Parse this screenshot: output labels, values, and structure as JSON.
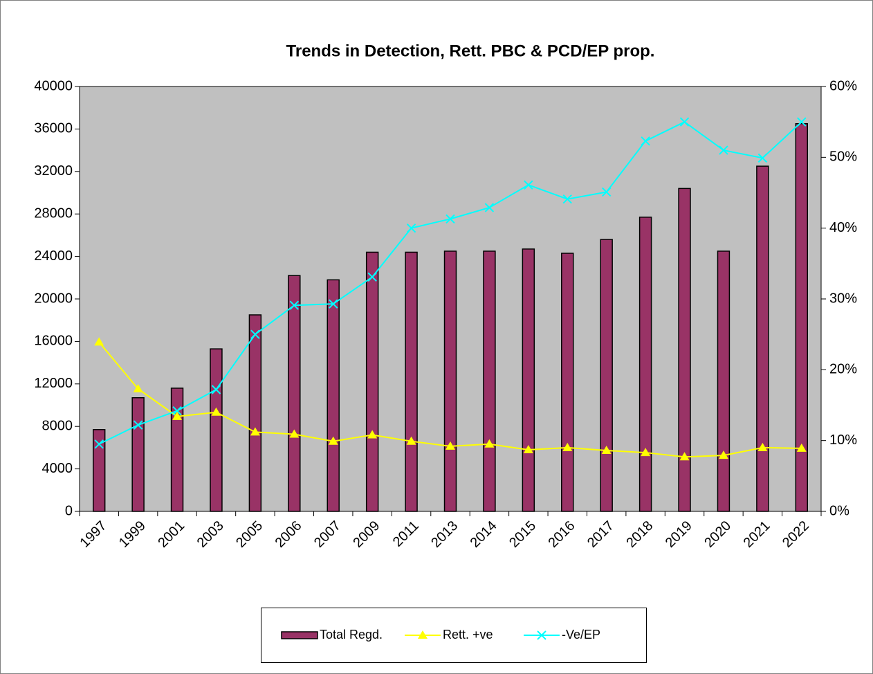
{
  "chart_data": {
    "type": "bar",
    "title": "Trends in Detection, Rett. PBC & PCD/EP prop.",
    "categories": [
      "1997",
      "1999",
      "2001",
      "2003",
      "2005",
      "2006",
      "2007",
      "2009",
      "2011",
      "2013",
      "2014",
      "2015",
      "2016",
      "2017",
      "2018",
      "2019",
      "2020",
      "2021",
      "2022"
    ],
    "series": [
      {
        "name": "Total Regd.",
        "type": "bar",
        "color": "#993366",
        "values": [
          7700,
          10700,
          11600,
          15300,
          18500,
          22200,
          21800,
          24400,
          24400,
          24500,
          24500,
          24700,
          24300,
          25600,
          27700,
          30400,
          24500,
          32500,
          36500
        ]
      },
      {
        "name": "Rett. +ve",
        "type": "line",
        "axis": "y2",
        "color": "#ffff00",
        "marker": "triangle",
        "values": [
          23.9,
          17.3,
          13.4,
          14.0,
          11.2,
          10.9,
          9.9,
          10.8,
          9.9,
          9.2,
          9.5,
          8.7,
          9.0,
          8.6,
          8.3,
          7.7,
          7.9,
          9.0,
          8.9
        ]
      },
      {
        "name": "-Ve/EP",
        "type": "line",
        "axis": "y2",
        "color": "#00ffff",
        "marker": "x",
        "values": [
          9.5,
          12.2,
          14.2,
          17.2,
          25.0,
          29.1,
          29.3,
          33.1,
          40.0,
          41.3,
          42.9,
          46.1,
          44.1,
          45.1,
          52.3,
          55.0,
          51.0,
          49.9,
          55.0
        ]
      }
    ],
    "ylim": [
      0,
      40000
    ],
    "yticks": [
      0,
      4000,
      8000,
      12000,
      16000,
      20000,
      24000,
      28000,
      32000,
      36000,
      40000
    ],
    "y2lim": [
      0,
      60
    ],
    "y2ticks": [
      {
        "value": 0,
        "label": "0%"
      },
      {
        "value": 10,
        "label": "10%"
      },
      {
        "value": 20,
        "label": "20%"
      },
      {
        "value": 30,
        "label": "30%"
      },
      {
        "value": 40,
        "label": "40%"
      },
      {
        "value": 50,
        "label": "50%"
      },
      {
        "value": 60,
        "label": "60%"
      }
    ],
    "legend": "bottom",
    "plot_background": "#c0c0c0"
  }
}
